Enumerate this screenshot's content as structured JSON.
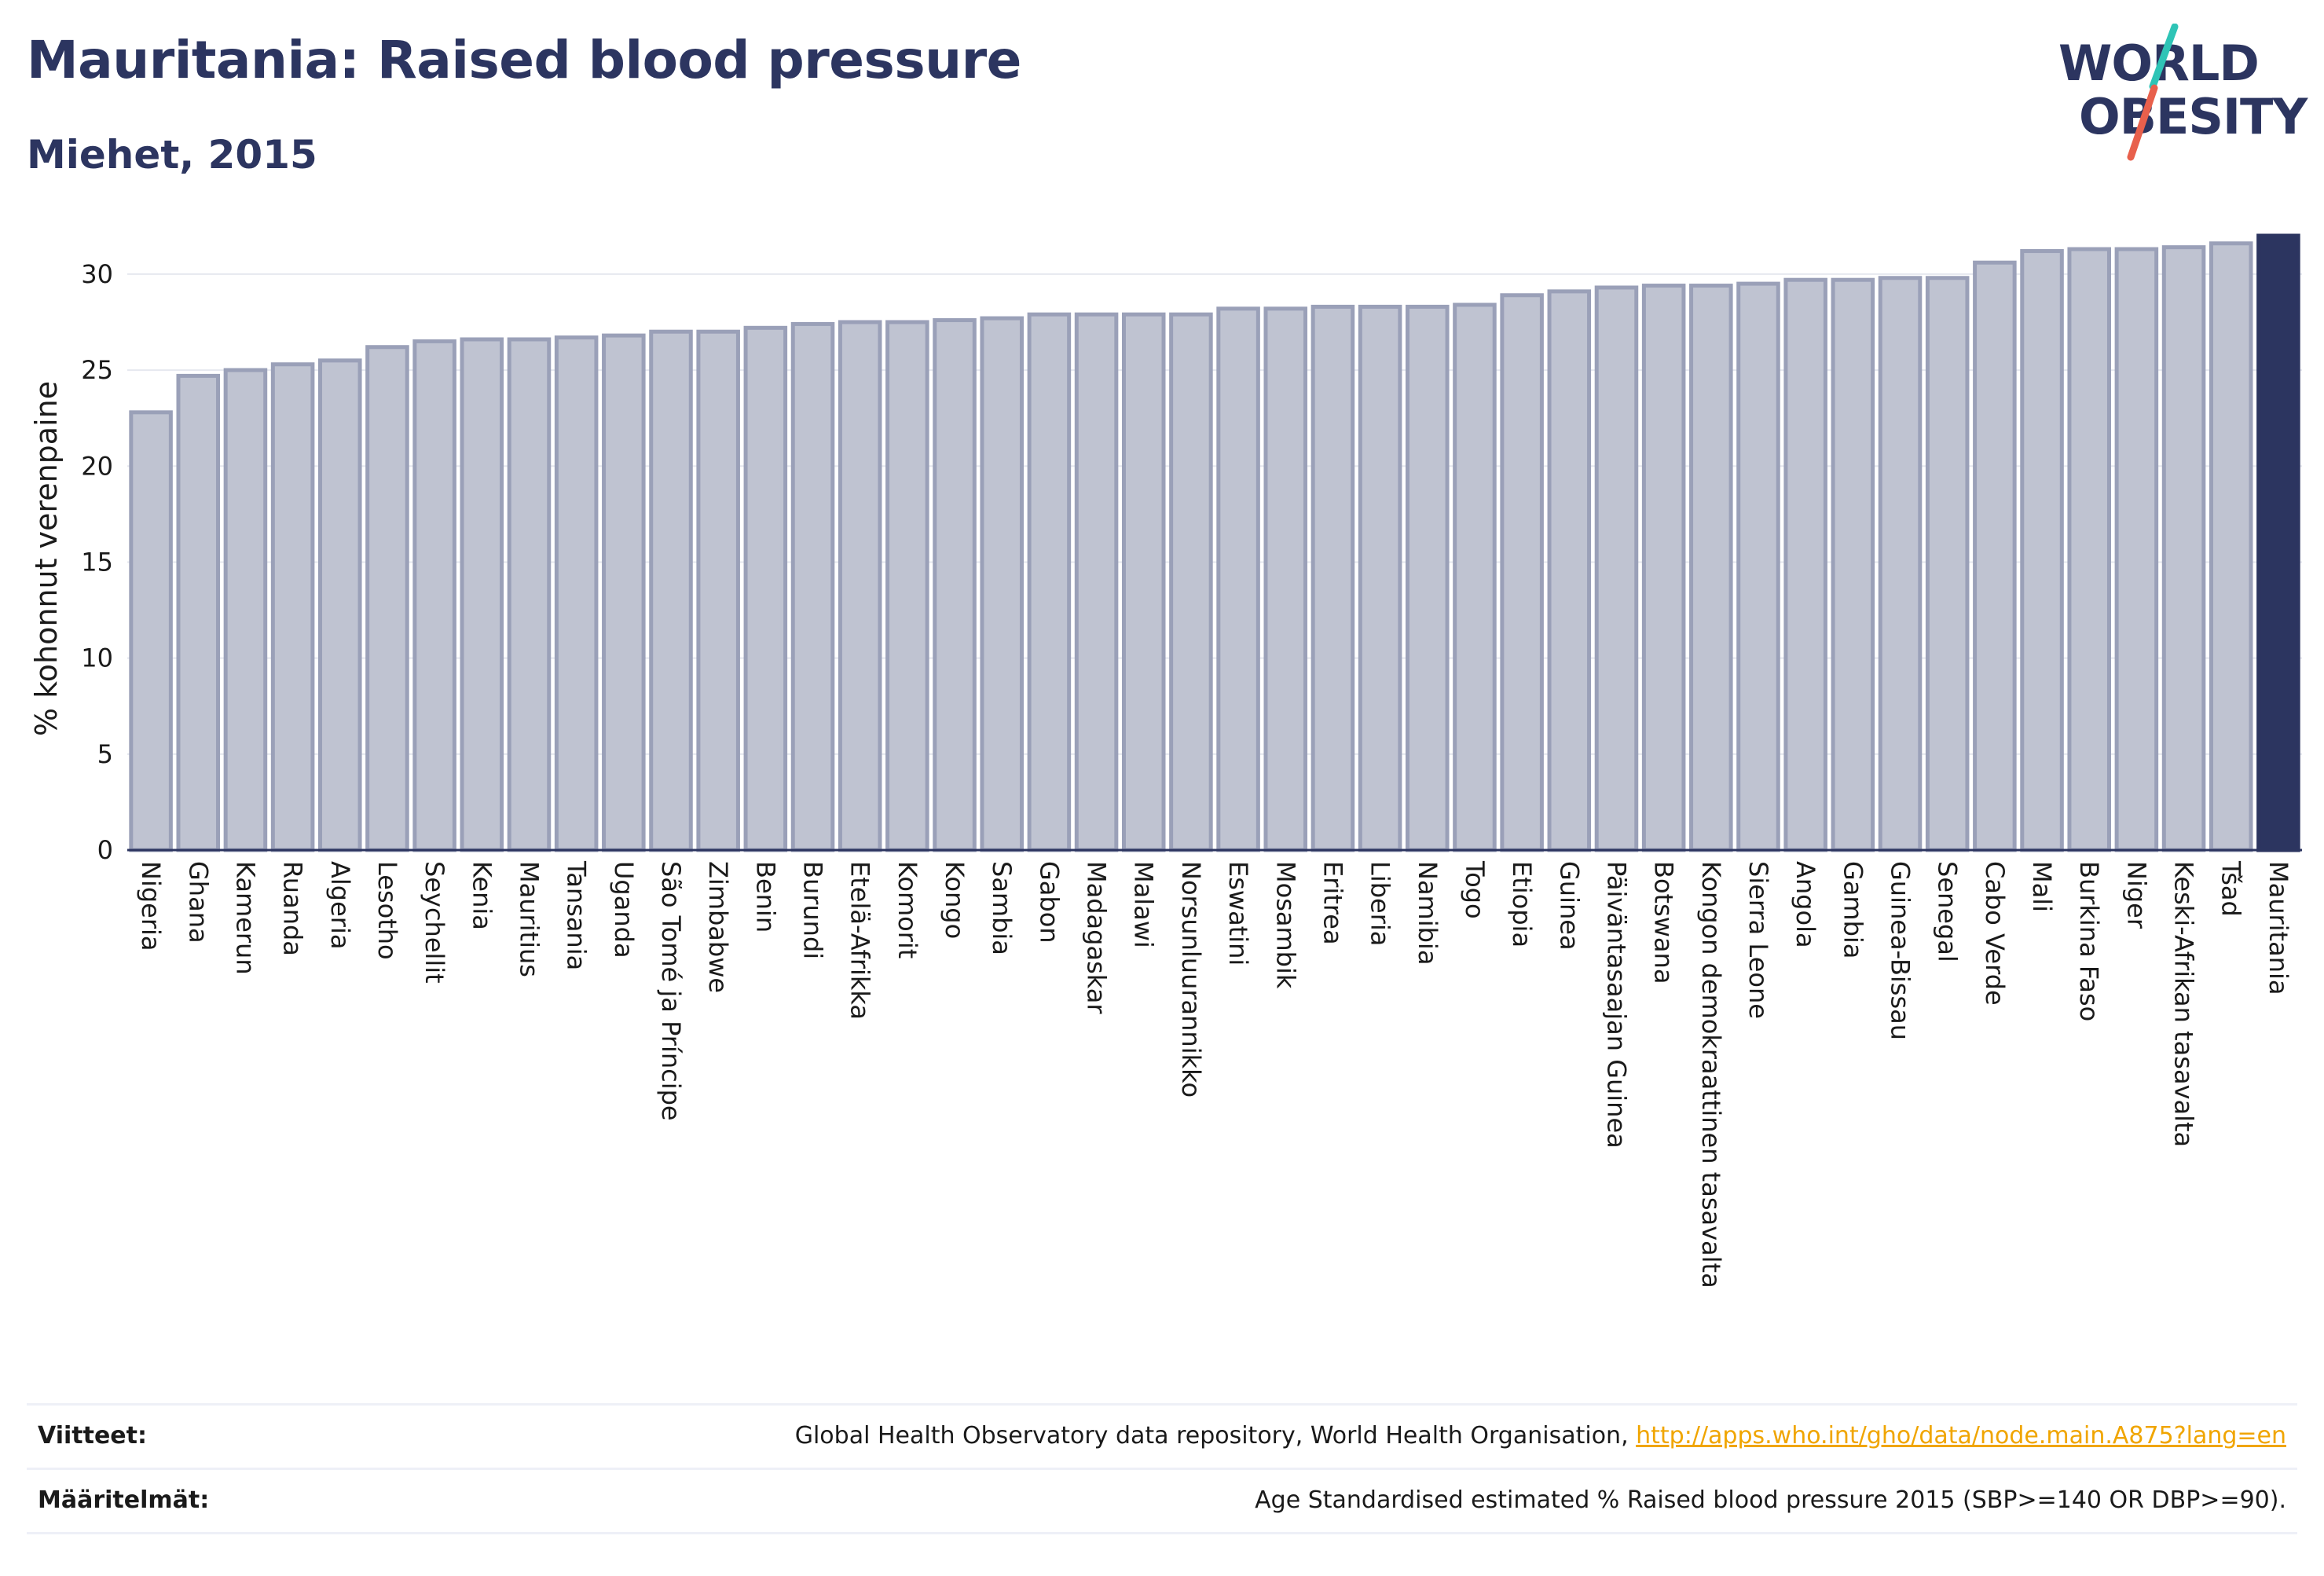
{
  "header": {
    "title": "Mauritania: Raised blood pressure",
    "subtitle": "Miehet, 2015"
  },
  "logo": {
    "line1": "WORLD",
    "line2": "OBESITY",
    "slash_colors": [
      "#2ec4b6",
      "#e8604c"
    ]
  },
  "colors": {
    "bar_fill": "#bfc3d1",
    "bar_edge": "#9aa0b8",
    "highlight": "#2c3560",
    "grid": "#e6e8ef",
    "link": "#f0a500"
  },
  "chart_data": {
    "type": "bar",
    "ylabel": "% kohonnut verenpaine",
    "ylim": [
      0,
      32
    ],
    "yticks": [
      0,
      5,
      10,
      15,
      20,
      25,
      30
    ],
    "grid": true,
    "highlight": "Mauritania",
    "categories": [
      "Nigeria",
      "Ghana",
      "Kamerun",
      "Ruanda",
      "Algeria",
      "Lesotho",
      "Seychellit",
      "Kenia",
      "Mauritius",
      "Tansania",
      "Uganda",
      "São Tomé ja Príncipe",
      "Zimbabwe",
      "Benin",
      "Burundi",
      "Etelä-Afrikka",
      "Komorit",
      "Kongo",
      "Sambia",
      "Gabon",
      "Madagaskar",
      "Malawi",
      "Norsunluurannikko",
      "Eswatini",
      "Mosambik",
      "Eritrea",
      "Liberia",
      "Namibia",
      "Togo",
      "Etiopia",
      "Guinea",
      "Päiväntasaajan Guinea",
      "Botswana",
      "Kongon demokraattinen tasavalta",
      "Sierra Leone",
      "Angola",
      "Gambia",
      "Guinea-Bissau",
      "Senegal",
      "Cabo Verde",
      "Mali",
      "Burkina Faso",
      "Niger",
      "Keski-Afrikan tasavalta",
      "Tšad",
      "Mauritania"
    ],
    "values": [
      22.8,
      24.7,
      25.0,
      25.3,
      25.5,
      26.2,
      26.5,
      26.6,
      26.6,
      26.7,
      26.8,
      27.0,
      27.0,
      27.2,
      27.4,
      27.5,
      27.5,
      27.6,
      27.7,
      27.9,
      27.9,
      27.9,
      27.9,
      28.2,
      28.2,
      28.3,
      28.3,
      28.3,
      28.4,
      28.9,
      29.1,
      29.3,
      29.4,
      29.4,
      29.5,
      29.7,
      29.7,
      29.8,
      29.8,
      30.6,
      31.2,
      31.3,
      31.3,
      31.4,
      31.6,
      32.0
    ]
  },
  "footer": {
    "sources_label": "Viitteet:",
    "sources_text": "Global Health Observatory data repository, World Health Organisation, ",
    "sources_link": "http://apps.who.int/gho/data/node.main.A875?lang=en",
    "definitions_label": "Määritelmät:",
    "definitions_text": "Age Standardised estimated % Raised blood pressure 2015 (SBP>=140 OR DBP>=90)."
  }
}
